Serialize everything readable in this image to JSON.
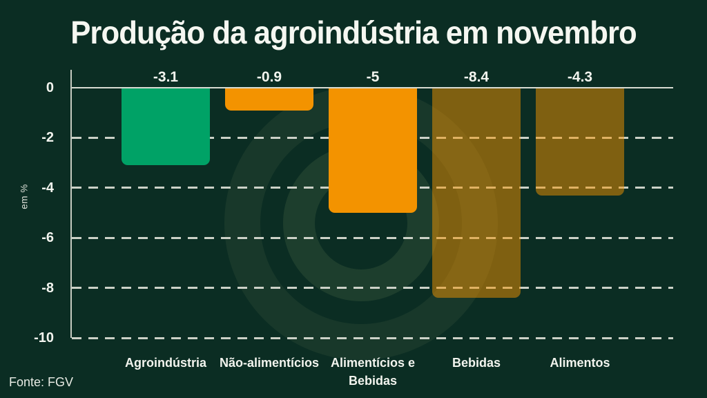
{
  "title": "Produção da agroindústria em novembro",
  "source": "Fonte: FGV",
  "ylabel": "em %",
  "colors": {
    "background": "#0b2d23",
    "green_bar": "#00a266",
    "orange_bar": "#f39300",
    "grid_dash": "#ccd1c7",
    "zero_line": "#d9dcd3",
    "axis": "#c7ccc2",
    "text": "#f5f7f1",
    "watermark_ring": "rgba(197,215,138,0.09)"
  },
  "chart_data": {
    "type": "bar",
    "title": "Produção da agroindústria em novembro",
    "xlabel": "",
    "ylabel": "em %",
    "ylim": [
      -10,
      0
    ],
    "grid": "horizontal-dashed",
    "legend": "none",
    "yticks": [
      0,
      -2,
      -4,
      -6,
      -8,
      -10
    ],
    "ytick_labels": [
      "0",
      "-2",
      "-4",
      "-6",
      "-8",
      "-10"
    ],
    "categories": [
      "Agroindústria",
      "Não-alimentícios",
      "Alimentícios e Bebidas",
      "Bebidas",
      "Alimentos"
    ],
    "category_label_lines": [
      [
        "Agroindústria"
      ],
      [
        "Não-alimentícios"
      ],
      [
        "Alimentícios e",
        "Bebidas"
      ],
      [
        "Bebidas"
      ],
      [
        "Alimentos"
      ]
    ],
    "values": [
      -3.1,
      -0.9,
      -5,
      -8.4,
      -4.3
    ],
    "value_labels": [
      "-3.1",
      "-0.9",
      "-5",
      "-8.4",
      "-4.3"
    ],
    "bar_colors": [
      "#00a266",
      "#f39300",
      "#f39300",
      "#f39300",
      "#f39300"
    ],
    "bar_opacity": [
      1,
      1,
      1,
      0.5,
      0.5
    ]
  }
}
